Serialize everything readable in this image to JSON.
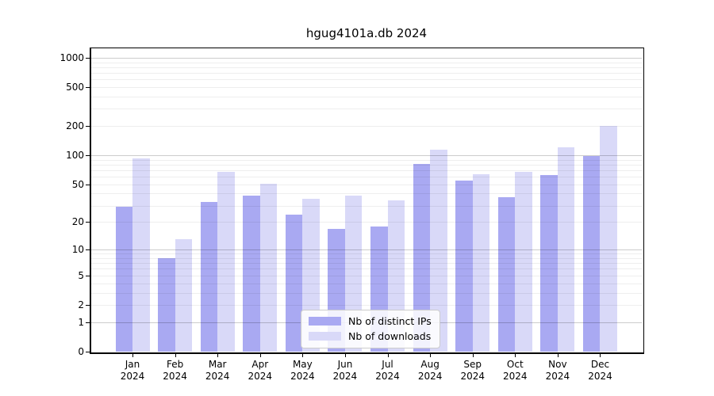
{
  "title": "hgug4101a.db 2024",
  "chart_data": {
    "type": "bar",
    "title": "hgug4101a.db 2024",
    "categories": [
      "Jan",
      "Feb",
      "Mar",
      "Apr",
      "May",
      "Jun",
      "Jul",
      "Aug",
      "Sep",
      "Oct",
      "Nov",
      "Dec"
    ],
    "year_label": "2024",
    "series": [
      {
        "name": "Nb of distinct IPs",
        "color": "#a9a9f2",
        "values": [
          29,
          8,
          33,
          38,
          24,
          17,
          18,
          81,
          55,
          37,
          63,
          98
        ]
      },
      {
        "name": "Nb of downloads",
        "color": "#d9d9f8",
        "values": [
          93,
          13,
          67,
          51,
          35,
          38,
          34,
          115,
          64,
          67,
          120,
          200
        ]
      }
    ],
    "y_ticks": [
      0,
      1,
      2,
      5,
      10,
      20,
      50,
      100,
      200,
      500,
      1000
    ],
    "y_scale": "log10(1+value)",
    "ylim": [
      0,
      1250
    ],
    "xlabel": "",
    "ylabel": "",
    "grid": "horizontal log gridlines, minors at 2-9 per decade",
    "legend_position": "lower center"
  }
}
